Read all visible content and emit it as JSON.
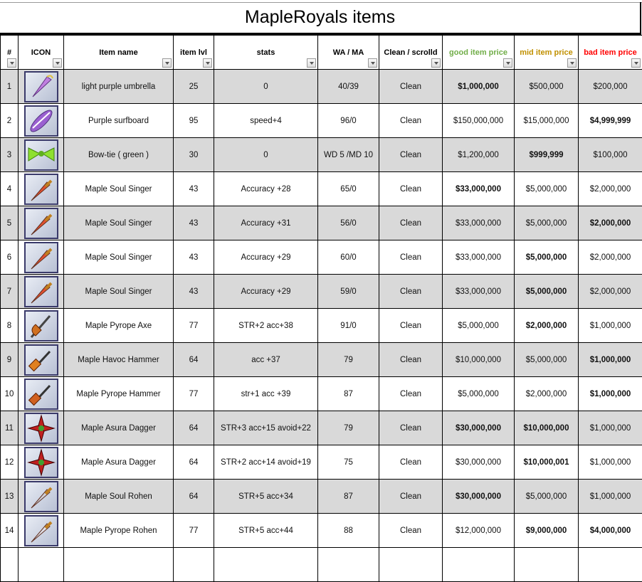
{
  "title": "MapleRoyals items",
  "columns": [
    {
      "label": "#",
      "color": "#000000"
    },
    {
      "label": "ICON",
      "color": "#000000"
    },
    {
      "label": "Item name",
      "color": "#000000"
    },
    {
      "label": "item lvl",
      "color": "#000000"
    },
    {
      "label": "stats",
      "color": "#000000"
    },
    {
      "label": "WA / MA",
      "color": "#000000"
    },
    {
      "label": "Clean / scrolld",
      "color": "#000000"
    },
    {
      "label": "good item price",
      "color": "#70ad47"
    },
    {
      "label": "mid item price",
      "color": "#c09000"
    },
    {
      "label": "bad item price",
      "color": "#ff0000"
    }
  ],
  "rows": [
    {
      "num": "1",
      "icon": "umbrella-icon",
      "iconColor": "#c080e0",
      "name": "light purple umbrella",
      "lvl": "25",
      "stats": "0",
      "wama": "40/39",
      "clean": "Clean",
      "good": "$1,000,000",
      "mid": "$500,000",
      "bad": "$200,000",
      "bold": [
        true,
        false,
        false
      ]
    },
    {
      "num": "2",
      "icon": "surfboard-icon",
      "iconColor": "#9a60d0",
      "name": "Purple surfboard",
      "lvl": "95",
      "stats": "speed+4",
      "wama": "96/0",
      "clean": "Clean",
      "good": "$150,000,000",
      "mid": "$15,000,000",
      "bad": "$4,999,999",
      "bold": [
        false,
        false,
        true
      ]
    },
    {
      "num": "3",
      "icon": "bowtie-icon",
      "iconColor": "#8ee030",
      "name": "Bow-tie ( green )",
      "lvl": "30",
      "stats": "0",
      "wama": "WD 5 /MD 10",
      "clean": "Clean",
      "good": "$1,200,000",
      "mid": "$999,999",
      "bad": "$100,000",
      "bold": [
        false,
        true,
        false
      ]
    },
    {
      "num": "4",
      "icon": "sword-icon",
      "iconColor": "#e05030",
      "name": "Maple Soul Singer",
      "lvl": "43",
      "stats": "Accuracy +28",
      "wama": "65/0",
      "clean": "Clean",
      "good": "$33,000,000",
      "mid": "$5,000,000",
      "bad": "$2,000,000",
      "bold": [
        true,
        false,
        false
      ]
    },
    {
      "num": "5",
      "icon": "sword-icon",
      "iconColor": "#e05030",
      "name": "Maple Soul Singer",
      "lvl": "43",
      "stats": "Accuracy +31",
      "wama": "56/0",
      "clean": "Clean",
      "good": "$33,000,000",
      "mid": "$5,000,000",
      "bad": "$2,000,000",
      "bold": [
        false,
        false,
        true
      ]
    },
    {
      "num": "6",
      "icon": "sword-icon",
      "iconColor": "#e05030",
      "name": "Maple Soul Singer",
      "lvl": "43",
      "stats": "Accuracy +29",
      "wama": "60/0",
      "clean": "Clean",
      "good": "$33,000,000",
      "mid": "$5,000,000",
      "bad": "$2,000,000",
      "bold": [
        false,
        true,
        false
      ]
    },
    {
      "num": "7",
      "icon": "sword-icon",
      "iconColor": "#e05030",
      "name": "Maple Soul Singer",
      "lvl": "43",
      "stats": "Accuracy +29",
      "wama": "59/0",
      "clean": "Clean",
      "good": "$33,000,000",
      "mid": "$5,000,000",
      "bad": "$2,000,000",
      "bold": [
        false,
        true,
        false
      ]
    },
    {
      "num": "8",
      "icon": "axe-icon",
      "iconColor": "#d07020",
      "name": "Maple Pyrope Axe",
      "lvl": "77",
      "stats": "STR+2 acc+38",
      "wama": "91/0",
      "clean": "Clean",
      "good": "$5,000,000",
      "mid": "$2,000,000",
      "bad": "$1,000,000",
      "bold": [
        false,
        true,
        false
      ]
    },
    {
      "num": "9",
      "icon": "hammer-icon",
      "iconColor": "#e08020",
      "name": "Maple Havoc Hammer",
      "lvl": "64",
      "stats": "acc +37",
      "wama": "79",
      "clean": "Clean",
      "good": "$10,000,000",
      "mid": "$5,000,000",
      "bad": "$1,000,000",
      "bold": [
        false,
        false,
        true
      ]
    },
    {
      "num": "10",
      "icon": "hammer-icon",
      "iconColor": "#d06020",
      "name": "Maple Pyrope Hammer",
      "lvl": "77",
      "stats": "str+1 acc +39",
      "wama": "87",
      "clean": "Clean",
      "good": "$5,000,000",
      "mid": "$2,000,000",
      "bad": "$1,000,000",
      "bold": [
        false,
        false,
        true
      ]
    },
    {
      "num": "11",
      "icon": "dagger-icon",
      "iconColor": "#c02020",
      "name": "Maple Asura Dagger",
      "lvl": "64",
      "stats": "STR+3 acc+15 avoid+22",
      "wama": "79",
      "clean": "Clean",
      "good": "$30,000,000",
      "mid": "$10,000,000",
      "bad": "$1,000,000",
      "bold": [
        true,
        true,
        false
      ]
    },
    {
      "num": "12",
      "icon": "dagger-icon",
      "iconColor": "#c02020",
      "name": "Maple Asura Dagger",
      "lvl": "64",
      "stats": "STR+2 acc+14 avoid+19",
      "wama": "75",
      "clean": "Clean",
      "good": "$30,000,000",
      "mid": "$10,000,001",
      "bad": "$1,000,000",
      "bold": [
        false,
        true,
        false
      ]
    },
    {
      "num": "13",
      "icon": "sword-icon",
      "iconColor": "#d0d0d8",
      "name": "Maple Soul Rohen",
      "lvl": "64",
      "stats": "STR+5 acc+34",
      "wama": "87",
      "clean": "Clean",
      "good": "$30,000,000",
      "mid": "$5,000,000",
      "bad": "$1,000,000",
      "bold": [
        true,
        false,
        false
      ]
    },
    {
      "num": "14",
      "icon": "sword-icon",
      "iconColor": "#e0e0e8",
      "name": "Maple Pyrope Rohen",
      "lvl": "77",
      "stats": "STR+5 acc+44",
      "wama": "88",
      "clean": "Clean",
      "good": "$12,000,000",
      "mid": "$9,000,000",
      "bad": "$4,000,000",
      "bold": [
        false,
        true,
        true
      ]
    }
  ]
}
